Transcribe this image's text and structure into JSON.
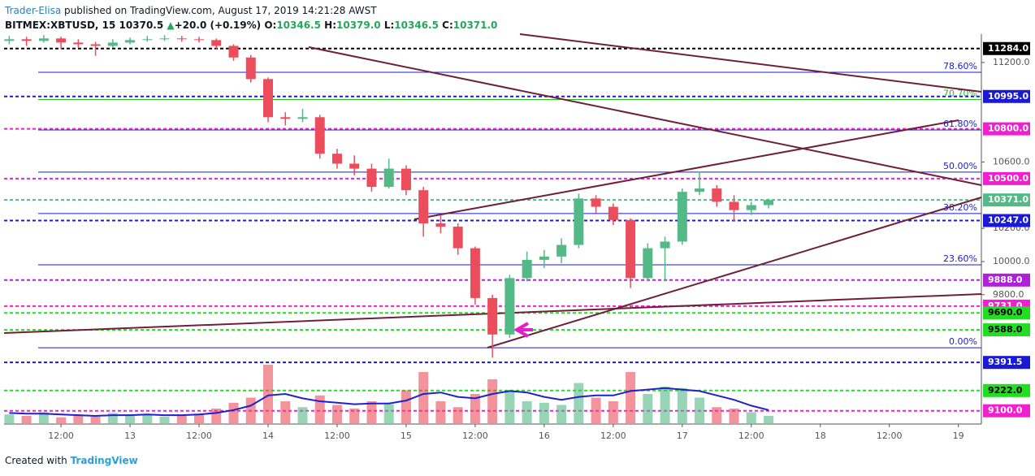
{
  "header": {
    "author": "Trader-Elisa",
    "published": "published on TradingView.com, August 17, 2019 14:21:28 AWST",
    "symbol": "BITMEX:XBTUSD, 15",
    "last": "10370.5",
    "arrow": "▲",
    "change": "+20.0 (+0.19%)",
    "o_label": "O:",
    "open": "10346.5",
    "h_label": "H:",
    "high": "10379.0",
    "l_label": "L:",
    "low": "10346.5",
    "c_label": "C:",
    "close": "10371.0"
  },
  "footer": {
    "created": "Created with",
    "brand": "TradingView"
  },
  "chart_data": {
    "type": "candlestick",
    "x": [
      3,
      6,
      9,
      12,
      15,
      18,
      21,
      24,
      27,
      30,
      33,
      36,
      39,
      42,
      45,
      48,
      51,
      54,
      57,
      60,
      63,
      66,
      69,
      72,
      75,
      78,
      81,
      84,
      87,
      90,
      93,
      96,
      99,
      102,
      105,
      108,
      111,
      114,
      117,
      120,
      123,
      126,
      129,
      132,
      135
    ],
    "candles": [
      [
        11330,
        11360,
        11310,
        11340
      ],
      [
        11340,
        11355,
        11300,
        11330
      ],
      [
        11330,
        11365,
        11320,
        11345
      ],
      [
        11345,
        11355,
        11280,
        11320
      ],
      [
        11320,
        11340,
        11290,
        11310
      ],
      [
        11310,
        11325,
        11240,
        11300
      ],
      [
        11300,
        11340,
        11290,
        11320
      ],
      [
        11320,
        11350,
        11310,
        11335
      ],
      [
        11335,
        11360,
        11325,
        11340
      ],
      [
        11340,
        11365,
        11330,
        11345
      ],
      [
        11345,
        11360,
        11325,
        11340
      ],
      [
        11340,
        11355,
        11320,
        11335
      ],
      [
        11335,
        11345,
        11280,
        11300
      ],
      [
        11300,
        11310,
        11210,
        11230
      ],
      [
        11230,
        11245,
        11080,
        11100
      ],
      [
        11100,
        11110,
        10840,
        10870
      ],
      [
        10870,
        10900,
        10820,
        10860
      ],
      [
        10860,
        10920,
        10840,
        10870
      ],
      [
        10870,
        10885,
        10620,
        10650
      ],
      [
        10650,
        10680,
        10560,
        10590
      ],
      [
        10590,
        10640,
        10520,
        10560
      ],
      [
        10560,
        10590,
        10420,
        10450
      ],
      [
        10450,
        10620,
        10440,
        10560
      ],
      [
        10560,
        10580,
        10400,
        10430
      ],
      [
        10430,
        10450,
        10150,
        10230
      ],
      [
        10230,
        10280,
        10170,
        10210
      ],
      [
        10210,
        10230,
        10040,
        10080
      ],
      [
        10080,
        10090,
        9740,
        9780
      ],
      [
        9780,
        9800,
        9420,
        9560
      ],
      [
        9560,
        9920,
        9540,
        9900
      ],
      [
        9900,
        10060,
        9880,
        10010
      ],
      [
        10010,
        10070,
        9960,
        10030
      ],
      [
        10030,
        10140,
        9990,
        10100
      ],
      [
        10100,
        10410,
        10080,
        10380
      ],
      [
        10380,
        10400,
        10290,
        10330
      ],
      [
        10330,
        10350,
        10220,
        10250
      ],
      [
        10250,
        10260,
        9840,
        9900
      ],
      [
        9900,
        10110,
        9880,
        10080
      ],
      [
        10080,
        10150,
        9880,
        10120
      ],
      [
        10120,
        10440,
        10100,
        10420
      ],
      [
        10420,
        10540,
        10400,
        10440
      ],
      [
        10440,
        10460,
        10330,
        10360
      ],
      [
        10360,
        10400,
        10240,
        10310
      ],
      [
        10310,
        10360,
        10280,
        10340
      ],
      [
        10340,
        10379,
        10320,
        10371
      ]
    ],
    "up_color": "#53b987",
    "down_color": "#eb4d5c",
    "volume": [
      12,
      10,
      15,
      8,
      11,
      9,
      14,
      10,
      12,
      9,
      11,
      13,
      20,
      28,
      35,
      80,
      30,
      22,
      38,
      25,
      20,
      30,
      26,
      45,
      70,
      30,
      22,
      40,
      60,
      45,
      30,
      28,
      25,
      55,
      35,
      30,
      70,
      40,
      50,
      48,
      35,
      22,
      20,
      15,
      10
    ],
    "volume_ma": [
      14,
      13,
      13,
      12,
      11,
      10,
      11,
      11,
      12,
      11,
      11,
      12,
      14,
      18,
      24,
      38,
      40,
      34,
      30,
      28,
      26,
      27,
      27,
      31,
      40,
      42,
      36,
      34,
      40,
      44,
      42,
      36,
      32,
      36,
      38,
      38,
      44,
      46,
      48,
      46,
      44,
      38,
      32,
      24,
      18
    ],
    "volume_ma_color": "#1e22c8",
    "xlim": [
      2.1,
      172
    ],
    "xticks": [
      {
        "value": 12,
        "label": "12:00"
      },
      {
        "value": 24,
        "label": "13"
      },
      {
        "value": 36,
        "label": "12:00"
      },
      {
        "value": 48,
        "label": "14"
      },
      {
        "value": 60,
        "label": "12:00"
      },
      {
        "value": 72,
        "label": "15"
      },
      {
        "value": 84,
        "label": "12:00"
      },
      {
        "value": 96,
        "label": "16"
      },
      {
        "value": 108,
        "label": "12:00"
      },
      {
        "value": 120,
        "label": "17"
      },
      {
        "value": 132,
        "label": "12:00"
      },
      {
        "value": 144,
        "label": "18"
      },
      {
        "value": 156,
        "label": "12:00"
      },
      {
        "value": 168,
        "label": "19"
      }
    ],
    "ylim": [
      9030,
      11371
    ],
    "yticks": [
      {
        "value": 11200,
        "label": "11200.0"
      },
      {
        "value": 10600,
        "label": "10600.0"
      },
      {
        "value": 10200,
        "label": "10200.0"
      },
      {
        "value": 10000,
        "label": "10000.0"
      },
      {
        "value": 9800,
        "label": "9800.0"
      }
    ],
    "levels": [
      {
        "value": 11284,
        "label": "11284.0",
        "color": "#000000",
        "text_color": "#ffffff"
      },
      {
        "value": 10995,
        "label": "10995.0",
        "color": "#1a1ad6",
        "text_color": "#ffffff"
      },
      {
        "value": 10800,
        "label": "10800.0",
        "color": "#f01fd0",
        "text_color": "#ffffff"
      },
      {
        "value": 10500,
        "label": "10500.0",
        "color": "#f01fd0",
        "text_color": "#ffffff"
      },
      {
        "value": 10371,
        "label": "10371.0",
        "color": "#53b987",
        "text_color": "#ffffff"
      },
      {
        "value": 10247,
        "label": "10247.0",
        "color": "#1a1ad6",
        "text_color": "#ffffff"
      },
      {
        "value": 9888,
        "label": "9888.0",
        "color": "#b020d8",
        "text_color": "#ffffff"
      },
      {
        "value": 9731,
        "label": "9731.0",
        "color": "#f01fd0",
        "text_color": "#ffffff"
      },
      {
        "value": 9690,
        "label": "9690.0",
        "color": "#22dd22",
        "text_color": "#000000"
      },
      {
        "value": 9588,
        "label": "9588.0",
        "color": "#22dd22",
        "text_color": "#000000"
      },
      {
        "value": 9391.5,
        "label": "9391.5",
        "color": "#1a1ad6",
        "text_color": "#ffffff"
      },
      {
        "value": 9222,
        "label": "9222.0",
        "color": "#22dd22",
        "text_color": "#000000"
      },
      {
        "value": 9100,
        "label": "9100.0",
        "color": "#f01fd0",
        "text_color": "#ffffff"
      }
    ],
    "fib": [
      {
        "value": 11141,
        "label": "78.60%",
        "color": "#1a1ad6"
      },
      {
        "value": 10977,
        "label": "70.70%",
        "color": "#22bb22"
      },
      {
        "value": 10793,
        "label": "61.80%",
        "color": "#1a1ad6"
      },
      {
        "value": 10539,
        "label": "50.00%",
        "color": "#1a1ad6"
      },
      {
        "value": 10289,
        "label": "38.20%",
        "color": "#1a1ad6"
      },
      {
        "value": 9980,
        "label": "23.60%",
        "color": "#1a1ad6"
      },
      {
        "value": 9480,
        "label": "0.00%",
        "color": "#1a1ad6"
      }
    ]
  }
}
